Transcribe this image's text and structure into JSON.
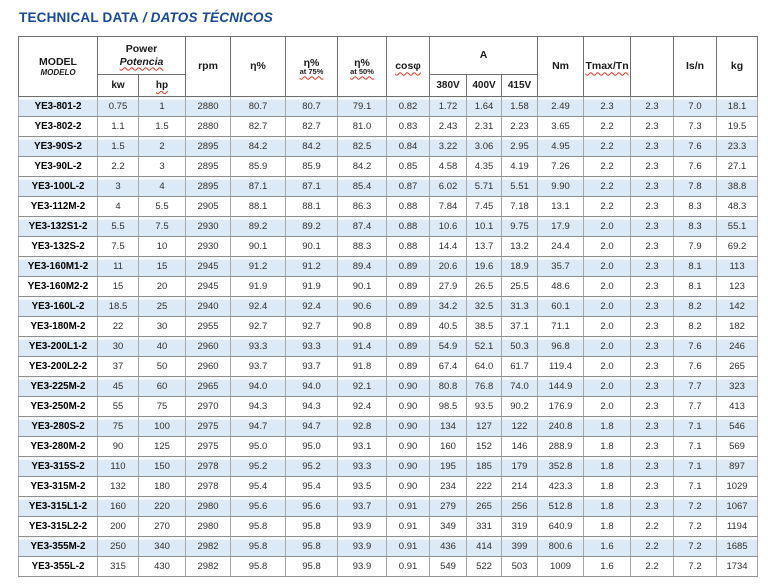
{
  "title": {
    "text_en": "TECHNICAL DATA",
    "separator": " / ",
    "text_es": "DATOS TÉCNICOS"
  },
  "colors": {
    "title_blue": "#16489e",
    "row_stripe": "#dce9f6",
    "grid_line": "#8f8f8f"
  },
  "table": {
    "columns": {
      "model": {
        "line1": "MODEL",
        "line2": "MODELO"
      },
      "power": {
        "line1": "Power",
        "line2": "Potencia",
        "sub": [
          "kw",
          "hp"
        ]
      },
      "rpm": "rpm",
      "eta": "η%",
      "eta75": {
        "line1": "η%",
        "line2": "at 75%"
      },
      "eta50": {
        "line1": "η%",
        "line2": "at 50%"
      },
      "cos": "cosφ",
      "amps": {
        "label": "A",
        "sub": [
          "380V",
          "400V",
          "415V"
        ]
      },
      "nm": "Nm",
      "tmax": "Tmax/Tn",
      "blank": "",
      "isn": "Is/n",
      "kg": "kg"
    },
    "rows": [
      [
        "YE3-801-2",
        "0.75",
        "1",
        "2880",
        "80.7",
        "80.7",
        "79.1",
        "0.82",
        "1.72",
        "1.64",
        "1.58",
        "2.49",
        "2.3",
        "2.3",
        "7.0",
        "18.1"
      ],
      [
        "YE3-802-2",
        "1.1",
        "1.5",
        "2880",
        "82.7",
        "82.7",
        "81.0",
        "0.83",
        "2.43",
        "2.31",
        "2.23",
        "3.65",
        "2.2",
        "2.3",
        "7.3",
        "19.5"
      ],
      [
        "YE3-90S-2",
        "1.5",
        "2",
        "2895",
        "84.2",
        "84.2",
        "82.5",
        "0.84",
        "3.22",
        "3.06",
        "2.95",
        "4.95",
        "2.2",
        "2.3",
        "7.6",
        "23.3"
      ],
      [
        "YE3-90L-2",
        "2.2",
        "3",
        "2895",
        "85.9",
        "85.9",
        "84.2",
        "0.85",
        "4.58",
        "4.35",
        "4.19",
        "7.26",
        "2.2",
        "2.3",
        "7.6",
        "27.1"
      ],
      [
        "YE3-100L-2",
        "3",
        "4",
        "2895",
        "87.1",
        "87.1",
        "85.4",
        "0.87",
        "6.02",
        "5.71",
        "5.51",
        "9.90",
        "2.2",
        "2.3",
        "7.8",
        "38.8"
      ],
      [
        "YE3-112M-2",
        "4",
        "5.5",
        "2905",
        "88.1",
        "88.1",
        "86.3",
        "0.88",
        "7.84",
        "7.45",
        "7.18",
        "13.1",
        "2.2",
        "2.3",
        "8.3",
        "48.3"
      ],
      [
        "YE3-132S1-2",
        "5.5",
        "7.5",
        "2930",
        "89.2",
        "89.2",
        "87.4",
        "0.88",
        "10.6",
        "10.1",
        "9.75",
        "17.9",
        "2.0",
        "2.3",
        "8.3",
        "55.1"
      ],
      [
        "YE3-132S-2",
        "7.5",
        "10",
        "2930",
        "90.1",
        "90.1",
        "88.3",
        "0.88",
        "14.4",
        "13.7",
        "13.2",
        "24.4",
        "2.0",
        "2.3",
        "7.9",
        "69.2"
      ],
      [
        "YE3-160M1-2",
        "11",
        "15",
        "2945",
        "91.2",
        "91.2",
        "89.4",
        "0.89",
        "20.6",
        "19.6",
        "18.9",
        "35.7",
        "2.0",
        "2.3",
        "8.1",
        "113"
      ],
      [
        "YE3-160M2-2",
        "15",
        "20",
        "2945",
        "91.9",
        "91.9",
        "90.1",
        "0.89",
        "27.9",
        "26.5",
        "25.5",
        "48.6",
        "2.0",
        "2.3",
        "8.1",
        "123"
      ],
      [
        "YE3-160L-2",
        "18.5",
        "25",
        "2940",
        "92.4",
        "92.4",
        "90.6",
        "0.89",
        "34.2",
        "32.5",
        "31.3",
        "60.1",
        "2.0",
        "2.3",
        "8.2",
        "142"
      ],
      [
        "YE3-180M-2",
        "22",
        "30",
        "2955",
        "92.7",
        "92.7",
        "90.8",
        "0.89",
        "40.5",
        "38.5",
        "37.1",
        "71.1",
        "2.0",
        "2.3",
        "8.2",
        "182"
      ],
      [
        "YE3-200L1-2",
        "30",
        "40",
        "2960",
        "93.3",
        "93.3",
        "91.4",
        "0.89",
        "54.9",
        "52.1",
        "50.3",
        "96.8",
        "2.0",
        "2.3",
        "7.6",
        "246"
      ],
      [
        "YE3-200L2-2",
        "37",
        "50",
        "2960",
        "93.7",
        "93.7",
        "91.8",
        "0.89",
        "67.4",
        "64.0",
        "61.7",
        "119.4",
        "2.0",
        "2.3",
        "7.6",
        "265"
      ],
      [
        "YE3-225M-2",
        "45",
        "60",
        "2965",
        "94.0",
        "94.0",
        "92.1",
        "0.90",
        "80.8",
        "76.8",
        "74.0",
        "144.9",
        "2.0",
        "2.3",
        "7.7",
        "323"
      ],
      [
        "YE3-250M-2",
        "55",
        "75",
        "2970",
        "94.3",
        "94.3",
        "92.4",
        "0.90",
        "98.5",
        "93.5",
        "90.2",
        "176.9",
        "2.0",
        "2.3",
        "7.7",
        "413"
      ],
      [
        "YE3-280S-2",
        "75",
        "100",
        "2975",
        "94.7",
        "94.7",
        "92.8",
        "0.90",
        "134",
        "127",
        "122",
        "240.8",
        "1.8",
        "2.3",
        "7.1",
        "546"
      ],
      [
        "YE3-280M-2",
        "90",
        "125",
        "2975",
        "95.0",
        "95.0",
        "93.1",
        "0.90",
        "160",
        "152",
        "146",
        "288.9",
        "1.8",
        "2.3",
        "7.1",
        "569"
      ],
      [
        "YE3-315S-2",
        "110",
        "150",
        "2978",
        "95.2",
        "95.2",
        "93.3",
        "0.90",
        "195",
        "185",
        "179",
        "352.8",
        "1.8",
        "2.3",
        "7.1",
        "897"
      ],
      [
        "YE3-315M-2",
        "132",
        "180",
        "2978",
        "95.4",
        "95.4",
        "93.5",
        "0.90",
        "234",
        "222",
        "214",
        "423.3",
        "1.8",
        "2.3",
        "7.1",
        "1029"
      ],
      [
        "YE3-315L1-2",
        "160",
        "220",
        "2980",
        "95.6",
        "95.6",
        "93.7",
        "0.91",
        "279",
        "265",
        "256",
        "512.8",
        "1.8",
        "2.3",
        "7.2",
        "1067"
      ],
      [
        "YE3-315L2-2",
        "200",
        "270",
        "2980",
        "95.8",
        "95.8",
        "93.9",
        "0.91",
        "349",
        "331",
        "319",
        "640.9",
        "1.8",
        "2.2",
        "7.2",
        "1194"
      ],
      [
        "YE3-355M-2",
        "250",
        "340",
        "2982",
        "95.8",
        "95.8",
        "93.9",
        "0.91",
        "436",
        "414",
        "399",
        "800.6",
        "1.6",
        "2.2",
        "7.2",
        "1685"
      ],
      [
        "YE3-355L-2",
        "315",
        "430",
        "2982",
        "95.8",
        "95.8",
        "93.9",
        "0.91",
        "549",
        "522",
        "503",
        "1009",
        "1.6",
        "2.2",
        "7.2",
        "1734"
      ]
    ]
  }
}
